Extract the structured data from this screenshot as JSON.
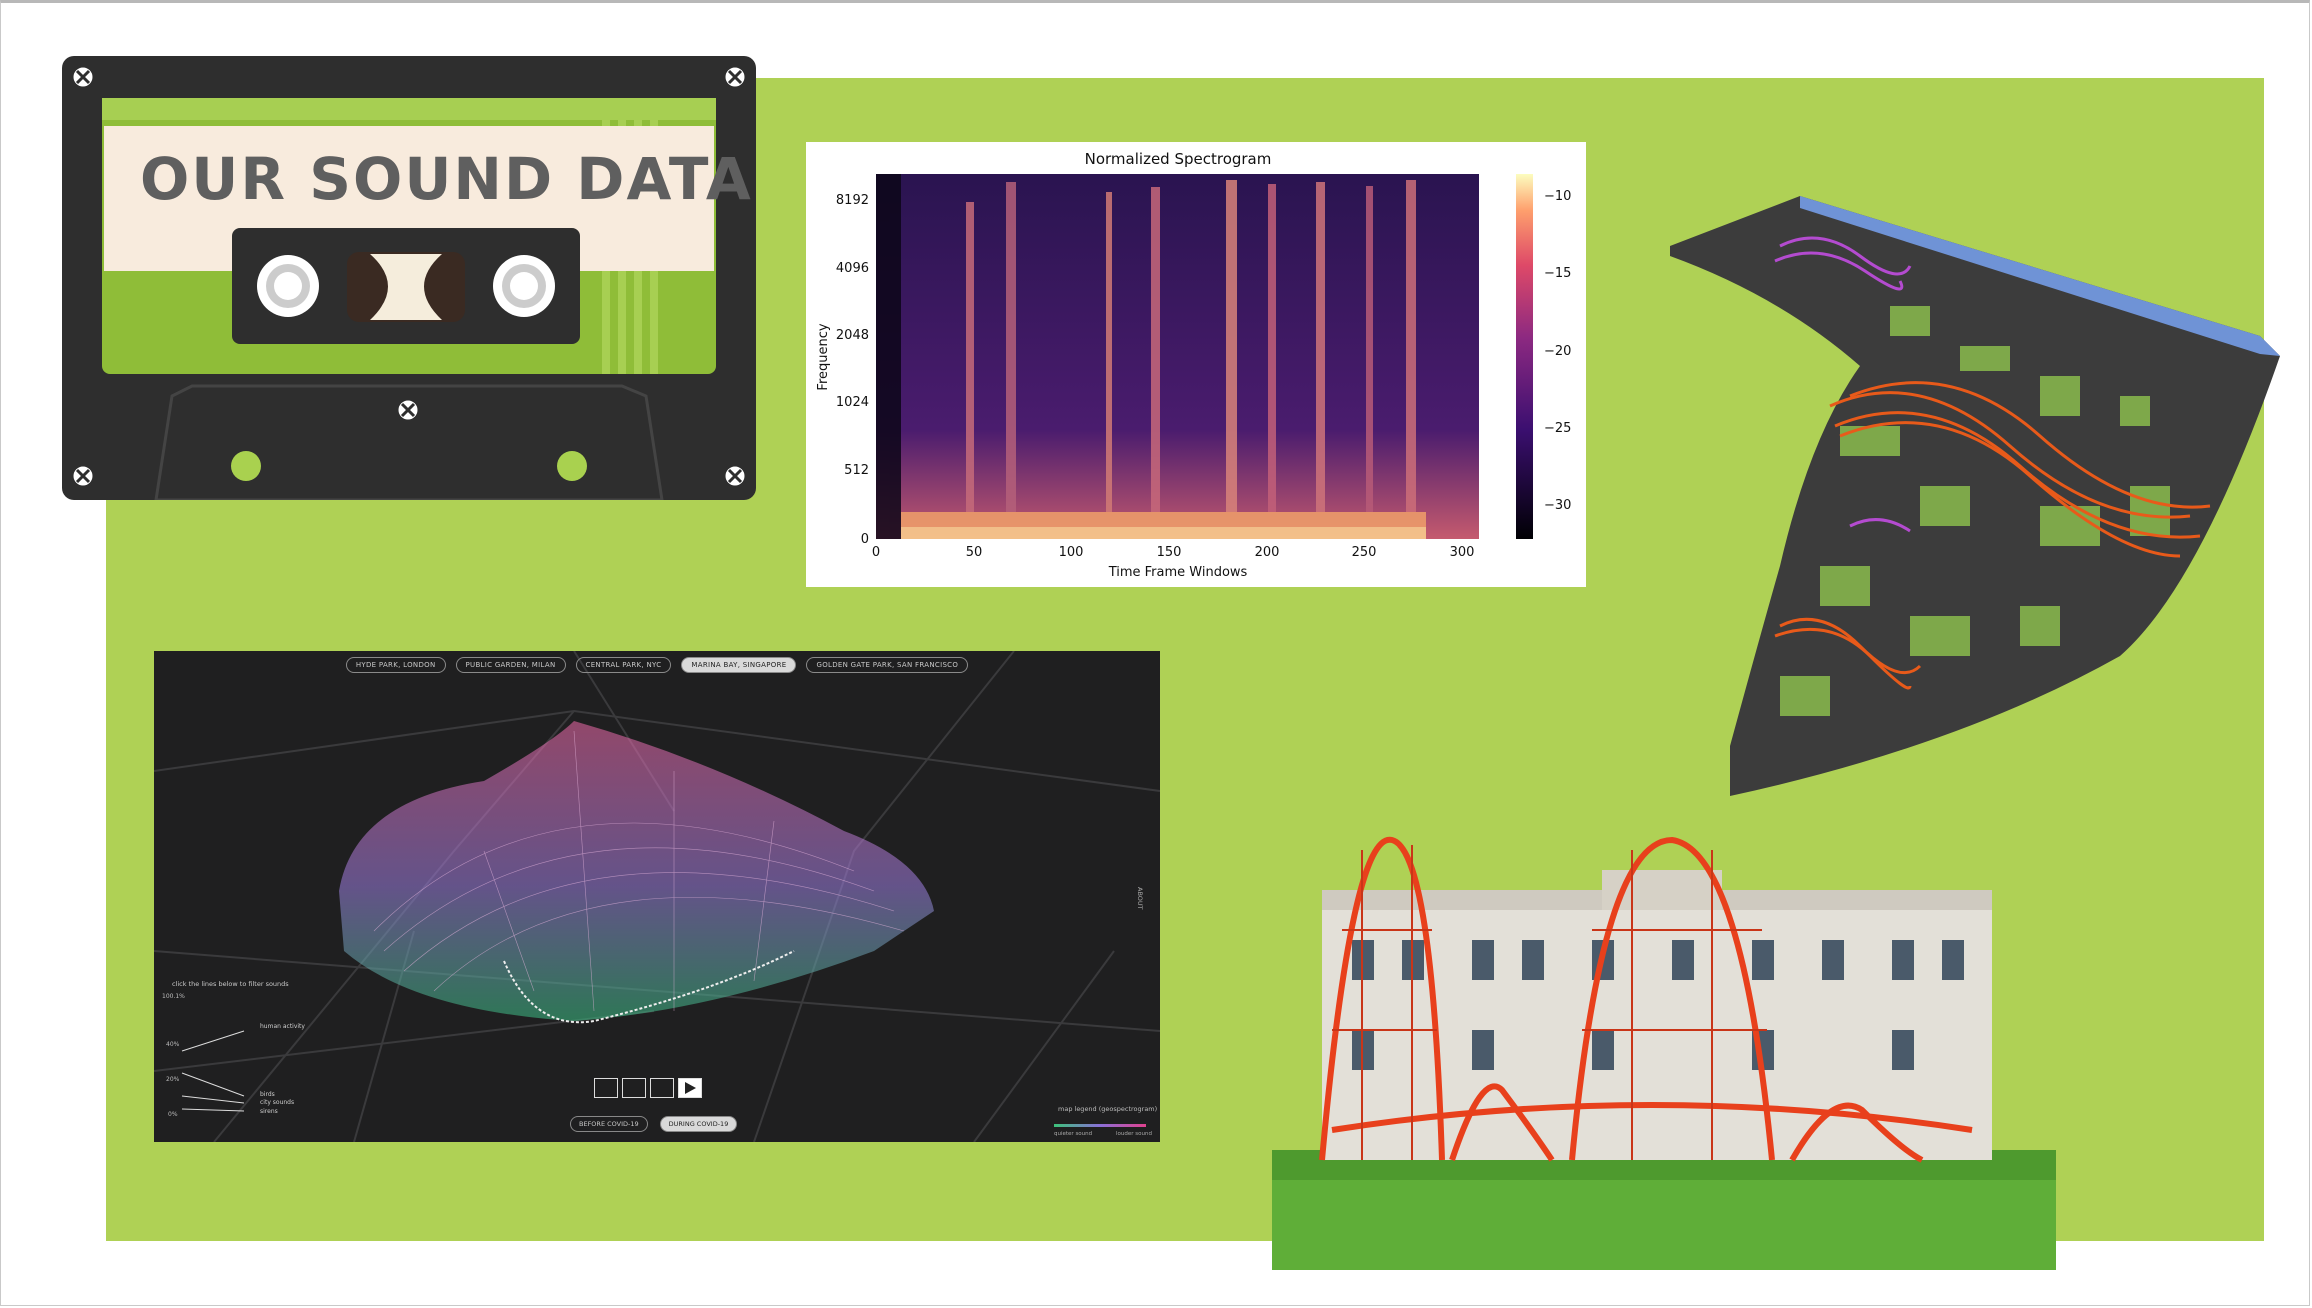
{
  "slide": {
    "title": "OUR SOUND DATA",
    "colors": {
      "panel": "#afd155",
      "background": "#ffffff",
      "cassette_body": "#2e2e2e"
    }
  },
  "spectrogram": {
    "title": "Normalized Spectrogram",
    "xlabel": "Time Frame Windows",
    "ylabel": "Frequency",
    "x_ticks": [
      "0",
      "50",
      "100",
      "150",
      "200",
      "250",
      "300"
    ],
    "y_ticks": [
      "0",
      "512",
      "1024",
      "2048",
      "4096",
      "8192"
    ],
    "colorbar_ticks": [
      "−10",
      "−15",
      "−20",
      "−25",
      "−30"
    ]
  },
  "visualization": {
    "locations": [
      {
        "label": "HYDE PARK, LONDON",
        "active": false
      },
      {
        "label": "PUBLIC GARDEN, MILAN",
        "active": false
      },
      {
        "label": "CENTRAL PARK, NYC",
        "active": false
      },
      {
        "label": "MARINA BAY, SINGAPORE",
        "active": true
      },
      {
        "label": "GOLDEN GATE PARK, SAN FRANCISCO",
        "active": false
      }
    ],
    "legend_title": "click the lines below to filter sounds",
    "legend_items": [
      "human activity",
      "birds",
      "city sounds",
      "sirens"
    ],
    "axis_labels": [
      "100.1%",
      "40%",
      "20%",
      "0%"
    ],
    "periods": [
      {
        "label": "BEFORE COVID-19",
        "active": false
      },
      {
        "label": "DURING COVID-19",
        "active": true
      }
    ],
    "map_legend": {
      "title": "map legend (geospectrogram)",
      "left": "quieter sound",
      "right": "louder sound"
    },
    "about": "ABOUT"
  }
}
